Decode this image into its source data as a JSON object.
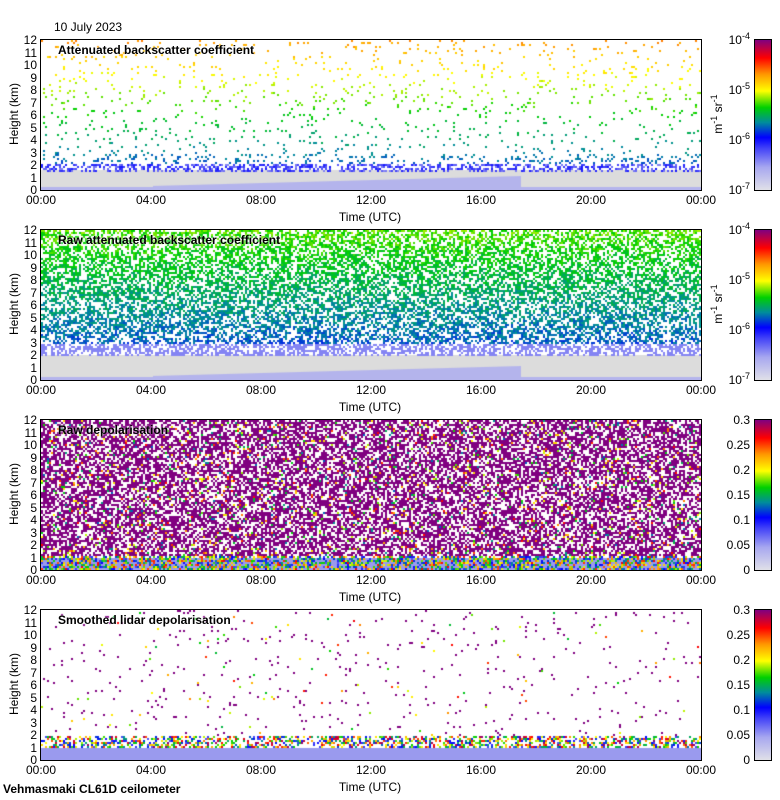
{
  "date": "10 July 2023",
  "footer": "Vehmasmaki CL61D ceilometer",
  "colors": {
    "background": "#ffffff",
    "ground": "#dcdcdc",
    "axis": "#000000"
  },
  "chart_data": [
    {
      "type": "heatmap",
      "kind": "att",
      "title": "Attenuated backscatter coefficient",
      "ylabel": "Height (km)",
      "xlabel": "Time (UTC)",
      "ylim": [
        0,
        12
      ],
      "yticks": [
        "0",
        "1",
        "2",
        "3",
        "4",
        "5",
        "6",
        "7",
        "8",
        "9",
        "10",
        "11",
        "12"
      ],
      "xticks": [
        "00:00",
        "04:00",
        "08:00",
        "12:00",
        "16:00",
        "20:00",
        "00:00"
      ],
      "colorbar": {
        "scale": "log",
        "range": [
          1e-07,
          0.0001
        ],
        "ticks": [
          "10-7",
          "10-6",
          "10-5",
          "10-4"
        ],
        "unit": "m-1 sr-1"
      }
    },
    {
      "type": "heatmap",
      "kind": "raw",
      "title": "Raw attenuated backscatter coefficient",
      "ylabel": "Height (km)",
      "xlabel": "Time (UTC)",
      "ylim": [
        0,
        12
      ],
      "yticks": [
        "0",
        "1",
        "2",
        "3",
        "4",
        "5",
        "6",
        "7",
        "8",
        "9",
        "10",
        "11",
        "12"
      ],
      "xticks": [
        "00:00",
        "04:00",
        "08:00",
        "12:00",
        "16:00",
        "20:00",
        "00:00"
      ],
      "colorbar": {
        "scale": "log",
        "range": [
          1e-07,
          0.0001
        ],
        "ticks": [
          "10-7",
          "10-6",
          "10-5",
          "10-4"
        ],
        "unit": "m-1 sr-1"
      }
    },
    {
      "type": "heatmap",
      "kind": "rawdepol",
      "title": "Raw depolarisation",
      "ylabel": "Height (km)",
      "xlabel": "Time (UTC)",
      "ylim": [
        0,
        12
      ],
      "yticks": [
        "0",
        "1",
        "2",
        "3",
        "4",
        "5",
        "6",
        "7",
        "8",
        "9",
        "10",
        "11",
        "12"
      ],
      "xticks": [
        "00:00",
        "04:00",
        "08:00",
        "12:00",
        "16:00",
        "20:00",
        "00:00"
      ],
      "colorbar": {
        "scale": "linear",
        "range": [
          0,
          0.3
        ],
        "ticks": [
          "0",
          "0.05",
          "0.1",
          "0.15",
          "0.2",
          "0.25",
          "0.3"
        ],
        "unit": ""
      }
    },
    {
      "type": "heatmap",
      "kind": "smooth",
      "title": "Smoothed lidar depolarisation",
      "ylabel": "Height (km)",
      "xlabel": "Time (UTC)",
      "ylim": [
        0,
        12
      ],
      "yticks": [
        "0",
        "1",
        "2",
        "3",
        "4",
        "5",
        "6",
        "7",
        "8",
        "9",
        "10",
        "11",
        "12"
      ],
      "xticks": [
        "00:00",
        "04:00",
        "08:00",
        "12:00",
        "16:00",
        "20:00",
        "00:00"
      ],
      "colorbar": {
        "scale": "linear",
        "range": [
          0,
          0.3
        ],
        "ticks": [
          "0",
          "0.05",
          "0.1",
          "0.15",
          "0.2",
          "0.25",
          "0.3"
        ],
        "unit": ""
      }
    }
  ]
}
